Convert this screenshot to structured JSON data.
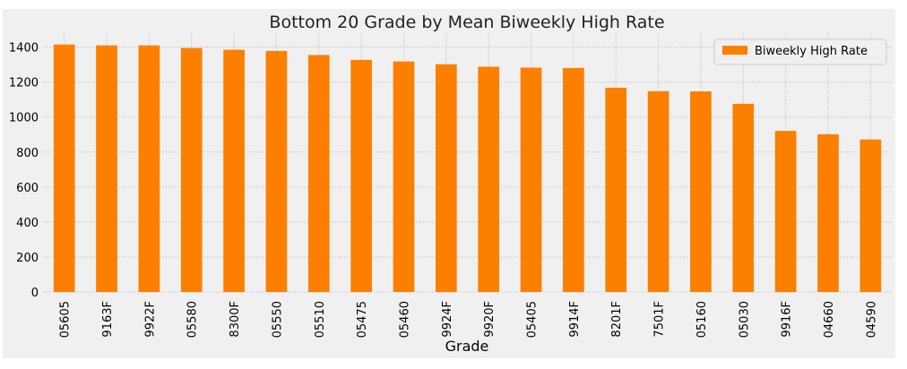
{
  "chart_data": {
    "type": "bar",
    "title": "Bottom 20 Grade by Mean Biweekly High Rate",
    "xlabel": "Grade",
    "ylabel": "",
    "categories": [
      "05605",
      "9163F",
      "9922F",
      "05580",
      "8300F",
      "05550",
      "05510",
      "05475",
      "05460",
      "9924F",
      "9920F",
      "05405",
      "9914F",
      "8201F",
      "7501F",
      "05160",
      "05030",
      "9916F",
      "04660",
      "04590"
    ],
    "series": [
      {
        "name": "Biweekly High Rate",
        "values": [
          1415,
          1410,
          1410,
          1395,
          1385,
          1378,
          1355,
          1327,
          1318,
          1302,
          1288,
          1283,
          1281,
          1168,
          1148,
          1147,
          1076,
          921,
          902,
          872
        ]
      }
    ],
    "ylim": [
      0,
      1480
    ],
    "yticks": [
      0,
      200,
      400,
      600,
      800,
      1000,
      1200,
      1400
    ],
    "grid": true,
    "legend_position": "top-right",
    "colors": {
      "bar": "#fc7f00",
      "plot_background": "#f0f0f0",
      "figure_background": "#ffffff",
      "grid": "#cbcbcb"
    }
  }
}
